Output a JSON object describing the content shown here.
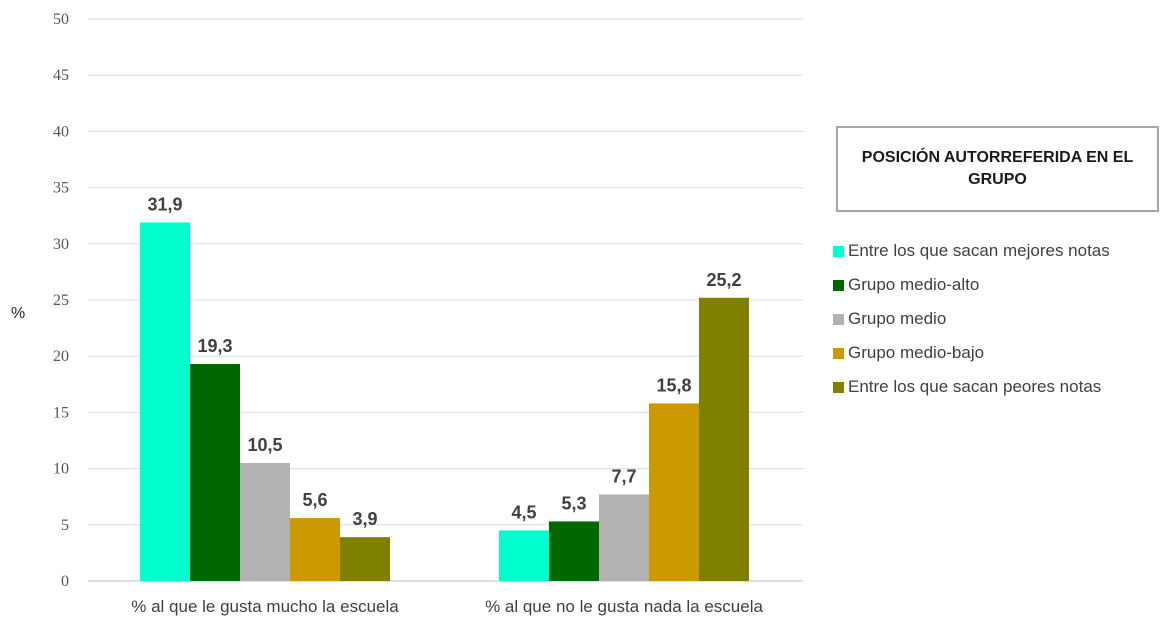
{
  "chart_data": {
    "type": "bar",
    "categories": [
      "% al que le gusta mucho la escuela",
      "% al que no le gusta nada la escuela"
    ],
    "series": [
      {
        "name": "Entre los que sacan mejores notas",
        "color": "#00ffcc",
        "values": [
          31.9,
          4.5
        ],
        "labels": [
          "31,9",
          "4,5"
        ]
      },
      {
        "name": "Grupo medio-alto",
        "color": "#006600",
        "values": [
          19.3,
          5.3
        ],
        "labels": [
          "19,3",
          "5,3"
        ]
      },
      {
        "name": "Grupo medio",
        "color": "#b2b2b2",
        "values": [
          10.5,
          7.7
        ],
        "labels": [
          "10,5",
          "7,7"
        ]
      },
      {
        "name": "Grupo medio-bajo",
        "color": "#cc9900",
        "values": [
          5.6,
          15.8
        ],
        "labels": [
          "5,6",
          "15,8"
        ]
      },
      {
        "name": "Entre los que sacan peores notas",
        "color": "#808000",
        "values": [
          3.9,
          25.2
        ],
        "labels": [
          "3,9",
          "25,2"
        ]
      }
    ],
    "ylabel": "%",
    "ylim": [
      0,
      50
    ],
    "yticks": [
      "0",
      "5",
      "10",
      "15",
      "20",
      "25",
      "30",
      "35",
      "40",
      "45",
      "50"
    ],
    "grid": true,
    "legend_title": "POSICIÓN AUTORREFERIDA EN EL GRUPO",
    "legend_position": "right"
  }
}
